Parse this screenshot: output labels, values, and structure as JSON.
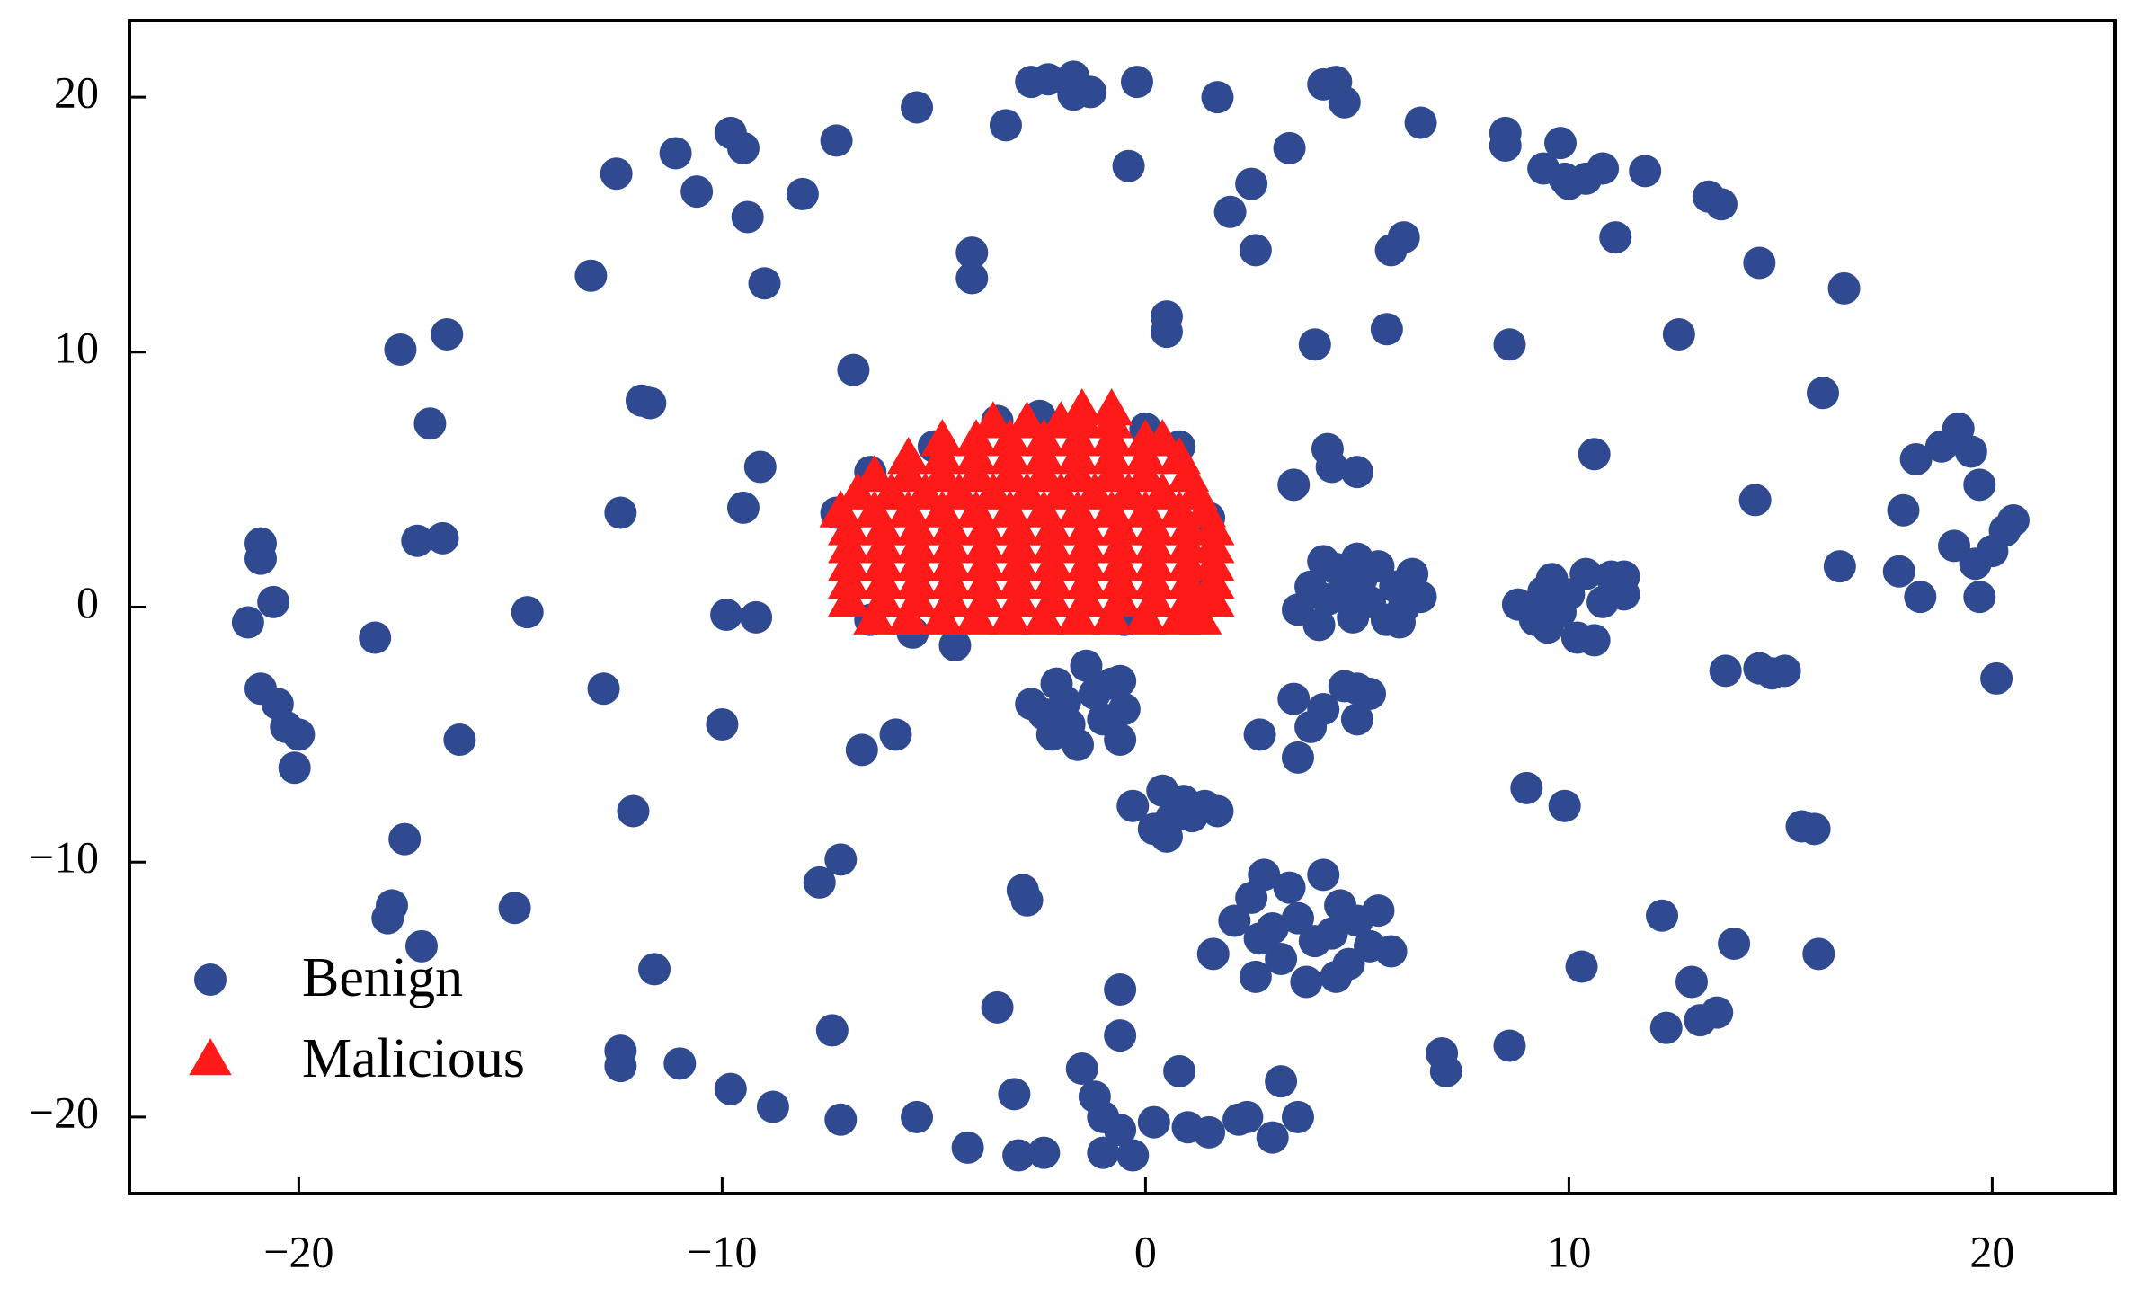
{
  "chart_data": {
    "type": "scatter",
    "xlim": [
      -24,
      22.9
    ],
    "ylim": [
      -23,
      23
    ],
    "xticks": [
      {
        "value": -20,
        "label": "−20"
      },
      {
        "value": -10,
        "label": "−10"
      },
      0,
      10,
      20
    ],
    "yticks": [
      {
        "value": -20,
        "label": "−20"
      },
      {
        "value": -10,
        "label": "−10"
      },
      0,
      10,
      20
    ],
    "legend": "lower left",
    "series": [
      {
        "name": "Benign",
        "color": "#304a92",
        "marker": "circle",
        "x": [
          -21.2,
          -20.9,
          -20.9,
          -20.6,
          -20.9,
          -20.5,
          -20.3,
          -20.0,
          -20.1,
          -18.2,
          -17.6,
          -16.9,
          -16.5,
          -17.2,
          -16.6,
          -16.2,
          -17.5,
          -17.8,
          -17.9,
          -17.1,
          -14.9,
          -14.6,
          -13.1,
          -12.8,
          -12.4,
          -12.5,
          -12.1,
          -11.9,
          -11.7,
          -11.6,
          -12.4,
          -12.4,
          -11.0,
          -11.1,
          -10.6,
          -10.0,
          -9.8,
          -9.5,
          -9.9,
          -9.4,
          -9.0,
          -9.1,
          -9.5,
          -9.2,
          -9.8,
          -8.8,
          -8.1,
          -7.7,
          -7.4,
          -7.2,
          -7.2,
          -7.3,
          -6.9,
          -6.7,
          -5.9,
          -5.4,
          -5.4,
          -4.2,
          -4.1,
          -4.1,
          -3.5,
          -3.3,
          -3.1,
          -3.0,
          -2.9,
          -2.8,
          -2.7,
          -2.3,
          -2.4,
          -1.7,
          -1.7,
          -1.3,
          -1.5,
          -1.2,
          -1.0,
          -1.0,
          -0.6,
          -0.3,
          0.2,
          0.8,
          1.0,
          1.5,
          2.2,
          2.4,
          3.0,
          3.2,
          3.6,
          -0.6,
          -0.6,
          -0.4,
          -0.2,
          1.7,
          2.0,
          2.5,
          2.6,
          3.4,
          4.0,
          4.2,
          4.5,
          4.7,
          5.7,
          5.8,
          6.1,
          6.5,
          7.0,
          7.1,
          8.6,
          8.5,
          8.5,
          8.6,
          9.0,
          9.4,
          9.8,
          9.9,
          9.9,
          10.0,
          10.4,
          10.8,
          11.1,
          11.8,
          10.6,
          10.3,
          12.2,
          12.3,
          12.6,
          12.9,
          13.1,
          13.5,
          13.9,
          13.3,
          13.6,
          14.5,
          14.4,
          13.7,
          14.5,
          14.8,
          15.1,
          15.5,
          15.8,
          15.9,
          16.0,
          16.4,
          16.5,
          17.8,
          17.9,
          18.3,
          18.2,
          18.8,
          19.2,
          19.1,
          19.5,
          19.6,
          19.7,
          19.7,
          20.0,
          20.3,
          20.5,
          20.1,
          0.5,
          0.5,
          3.5,
          4.3,
          4.4,
          5.0,
          3.6,
          3.9,
          4.1,
          4.3,
          4.5,
          4.7,
          4.9,
          5.1,
          5.3,
          5.5,
          5.7,
          5.9,
          6.1,
          6.3,
          6.5,
          4.2,
          5.0,
          6.0,
          8.8,
          9.2,
          9.4,
          9.6,
          9.8,
          10.0,
          10.2,
          10.4,
          10.6,
          10.8,
          11.0,
          11.3,
          11.3,
          9.5,
          -2.7,
          -2.4,
          -2.1,
          -1.8,
          -1.6,
          -1.4,
          -1.2,
          -1.0,
          -0.8,
          -0.6,
          -0.5,
          -1.9,
          -2.2,
          -0.6,
          -0.3,
          0.2,
          0.4,
          0.6,
          0.9,
          1.1,
          1.4,
          1.7,
          0.5,
          1.6,
          2.1,
          2.5,
          2.6,
          2.8,
          3.0,
          3.2,
          3.4,
          3.6,
          3.8,
          4.0,
          4.2,
          4.4,
          4.6,
          4.8,
          5.0,
          5.3,
          5.5,
          5.8,
          2.7,
          4.5,
          2.7,
          3.5,
          3.6,
          3.9,
          4.2,
          4.7,
          5.0,
          5.3,
          5.0,
          -4.5,
          -5.5,
          -6.5,
          -0.5,
          1.3,
          1.5,
          -7.3,
          -3.5,
          -2.5,
          0.0,
          0.8,
          -6.5,
          -5.0
        ],
        "values": [
          -0.6,
          2.5,
          1.9,
          0.2,
          -3.2,
          -3.8,
          -4.7,
          -5.0,
          -6.3,
          -1.2,
          10.1,
          7.2,
          10.7,
          2.6,
          2.7,
          -5.2,
          -9.1,
          -11.7,
          -12.2,
          -13.3,
          -11.8,
          -0.2,
          13.0,
          -3.2,
          3.7,
          17.0,
          -8.0,
          8.1,
          8.0,
          -14.2,
          -17.4,
          -18.0,
          -17.9,
          17.8,
          16.3,
          -4.6,
          18.6,
          18.0,
          -0.3,
          15.3,
          12.7,
          5.5,
          3.9,
          -0.4,
          -18.9,
          -19.6,
          16.2,
          -10.8,
          -16.6,
          -20.1,
          -9.9,
          18.3,
          9.3,
          -5.6,
          -5.0,
          19.6,
          -20.0,
          -21.2,
          13.9,
          12.9,
          -15.7,
          18.9,
          -19.1,
          -21.5,
          -11.1,
          -11.5,
          20.6,
          20.7,
          -21.4,
          20.8,
          20.1,
          20.2,
          -18.1,
          -19.2,
          -20.0,
          -21.4,
          -20.5,
          -21.5,
          -20.2,
          -18.2,
          -20.4,
          -20.6,
          -20.1,
          -20.0,
          -20.8,
          -18.6,
          -20.0,
          -15.0,
          -16.8,
          17.3,
          20.6,
          20.0,
          15.5,
          16.6,
          14.0,
          18.0,
          10.3,
          20.5,
          20.6,
          19.8,
          10.9,
          14.0,
          14.5,
          19.0,
          -17.5,
          -18.2,
          -17.2,
          18.1,
          18.6,
          10.3,
          -7.1,
          17.2,
          18.2,
          -7.8,
          16.8,
          16.6,
          16.8,
          17.2,
          14.5,
          17.1,
          6.0,
          -14.1,
          -12.1,
          -16.5,
          10.7,
          -14.7,
          -16.2,
          -15.9,
          -13.2,
          16.1,
          15.8,
          13.5,
          4.2,
          -2.5,
          -2.4,
          -2.6,
          -2.5,
          -8.6,
          -8.7,
          -13.6,
          8.4,
          1.6,
          12.5,
          1.4,
          3.8,
          0.4,
          5.8,
          6.3,
          7.0,
          2.4,
          6.1,
          1.7,
          4.8,
          0.4,
          2.2,
          3.0,
          3.4,
          -2.8,
          10.8,
          11.4,
          4.8,
          6.2,
          5.5,
          5.3,
          -0.1,
          0.8,
          -0.7,
          0.3,
          1.5,
          0.6,
          -0.4,
          1.1,
          0.2,
          1.6,
          -0.5,
          0.8,
          0.0,
          1.3,
          0.4,
          1.8,
          1.9,
          -0.6,
          0.1,
          -0.5,
          0.6,
          1.1,
          -0.2,
          0.5,
          -1.2,
          1.3,
          -1.3,
          0.2,
          1.2,
          0.5,
          1.2,
          -0.8,
          -3.8,
          -4.2,
          -3.0,
          -4.6,
          -5.4,
          -2.3,
          -3.4,
          -4.4,
          -3.0,
          -5.2,
          -4.0,
          -3.7,
          -5.0,
          -2.9,
          -7.8,
          -8.7,
          -7.2,
          -8.3,
          -7.6,
          -8.2,
          -7.8,
          -8.0,
          -9.0,
          -13.6,
          -12.3,
          -11.4,
          -14.5,
          -10.5,
          -12.6,
          -13.8,
          -11.0,
          -12.2,
          -14.7,
          -13.1,
          -10.5,
          -12.8,
          -11.7,
          -14.0,
          -12.3,
          -13.3,
          -11.9,
          -13.5,
          -13.0,
          -14.5,
          -5.0,
          -3.6,
          -5.9,
          -4.7,
          -4.0,
          -3.1,
          -3.2,
          -3.4,
          -4.4,
          -1.5,
          -1.0,
          -0.5,
          -0.5,
          0.5,
          3.5,
          3.7,
          7.3,
          7.5,
          7.0,
          6.3,
          5.3,
          6.3
        ]
      },
      {
        "name": "Malicious",
        "color": "#ff1a1a",
        "marker": "triangle",
        "x": [
          -6.4,
          -5.6,
          -4.8,
          -4.0,
          -3.2,
          -2.4,
          -1.6,
          -0.8,
          0.0,
          0.8,
          1.3,
          -7.0,
          -6.2,
          -5.4,
          -4.6,
          -3.8,
          -3.0,
          -2.2,
          -1.4,
          -0.6,
          0.2,
          1.0,
          1.6,
          -7.0,
          -6.2,
          -5.4,
          -4.6,
          -3.8,
          -3.0,
          -2.2,
          -1.4,
          -0.6,
          0.2,
          1.0,
          1.6,
          -7.0,
          -6.2,
          -5.4,
          -4.6,
          -3.8,
          -3.0,
          -2.2,
          -1.4,
          -0.6,
          0.2,
          1.0,
          1.6,
          -7.0,
          -6.2,
          -5.4,
          -4.6,
          -3.8,
          -3.0,
          -2.2,
          -1.4,
          -0.6,
          0.2,
          1.0,
          1.6,
          -7.0,
          -6.2,
          -5.4,
          -4.6,
          -3.8,
          -3.0,
          -2.2,
          -1.4,
          -0.6,
          0.2,
          1.0,
          1.6,
          -7.2,
          -6.4,
          -5.6,
          -4.8,
          -4.0,
          -3.2,
          -2.4,
          -1.6,
          -0.8,
          0.0,
          0.8,
          1.4,
          -6.8,
          -6.0,
          -5.2,
          -4.4,
          -3.6,
          -2.8,
          -2.0,
          -1.2,
          -0.4,
          0.4,
          1.2,
          -6.4,
          -5.6,
          -4.8,
          -4.0,
          -3.2,
          -2.4,
          -1.6,
          -0.8,
          0.0,
          1.0,
          -5.6,
          -4.8,
          -4.0,
          -3.2,
          -2.4,
          -1.6,
          -0.8,
          0.0,
          0.8,
          -4.8,
          -4.0,
          -3.2,
          -2.4,
          -1.6,
          -0.8,
          0.0,
          0.4,
          -3.6,
          -2.8,
          -2.0,
          -1.5,
          -0.8,
          -1.5,
          -0.8
        ],
        "values": [
          -0.5,
          -0.5,
          -0.5,
          -0.5,
          -0.5,
          -0.5,
          -0.5,
          -0.5,
          -0.5,
          -0.5,
          -0.5,
          0.2,
          0.2,
          0.2,
          0.2,
          0.2,
          0.2,
          0.2,
          0.2,
          0.2,
          0.2,
          0.2,
          0.2,
          0.9,
          0.9,
          0.9,
          0.9,
          0.9,
          0.9,
          0.9,
          0.9,
          0.9,
          0.9,
          0.9,
          0.9,
          1.6,
          1.6,
          1.6,
          1.6,
          1.6,
          1.6,
          1.6,
          1.6,
          1.6,
          1.6,
          1.6,
          1.6,
          2.3,
          2.3,
          2.3,
          2.3,
          2.3,
          2.3,
          2.3,
          2.3,
          2.3,
          2.3,
          2.3,
          2.3,
          3.0,
          3.0,
          3.0,
          3.0,
          3.0,
          3.0,
          3.0,
          3.0,
          3.0,
          3.0,
          3.0,
          3.0,
          3.7,
          3.7,
          3.7,
          3.7,
          3.7,
          3.7,
          3.7,
          3.7,
          3.7,
          3.7,
          3.7,
          3.7,
          4.4,
          4.4,
          4.4,
          4.4,
          4.4,
          4.4,
          4.4,
          4.4,
          4.4,
          4.4,
          4.4,
          5.1,
          5.1,
          5.1,
          5.1,
          5.1,
          5.1,
          5.1,
          5.1,
          5.1,
          5.1,
          5.8,
          5.8,
          5.8,
          5.8,
          5.8,
          5.8,
          5.8,
          5.8,
          5.8,
          6.5,
          6.5,
          6.5,
          6.5,
          6.5,
          6.5,
          6.5,
          6.5,
          7.2,
          7.2,
          7.2,
          7.2,
          7.2,
          7.7,
          7.7
        ]
      }
    ]
  }
}
